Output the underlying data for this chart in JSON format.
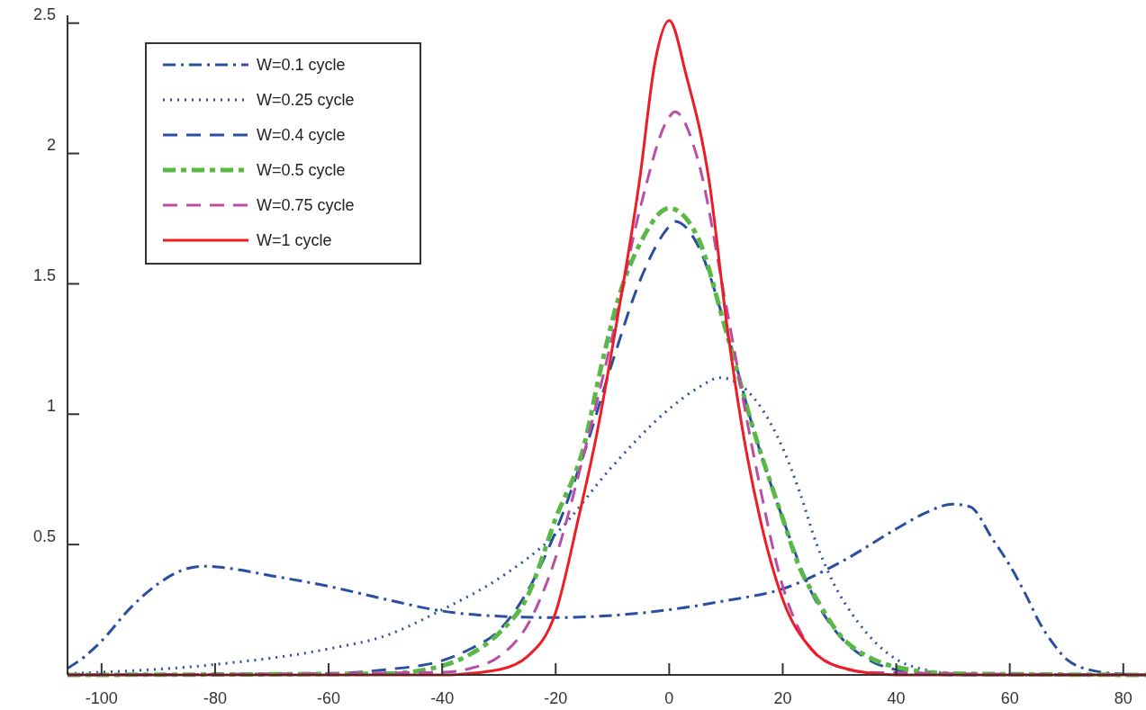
{
  "chart_data": {
    "type": "line",
    "xlim": [
      -106,
      84
    ],
    "ylim": [
      0,
      2.53
    ],
    "xticks": [
      -100,
      -80,
      -60,
      -40,
      -20,
      0,
      20,
      40,
      60,
      80
    ],
    "yticks": [
      0.5,
      1,
      1.5,
      2,
      2.5
    ],
    "grid": false,
    "legend": "top left",
    "series": [
      {
        "name": "W=0.1 cycle",
        "color": "#2a4ea0",
        "line_style": "dashdot",
        "x": [
          -106,
          -103,
          -100,
          -95,
          -90,
          -86,
          -82,
          -78,
          -70,
          -60,
          -50,
          -40,
          -30,
          -20,
          -10,
          0,
          10,
          20,
          30,
          40,
          45,
          50,
          53,
          57,
          60,
          63,
          65,
          68,
          70,
          75,
          80,
          84
        ],
        "values": [
          0.025,
          0.07,
          0.13,
          0.255,
          0.35,
          0.4,
          0.417,
          0.41,
          0.38,
          0.34,
          0.29,
          0.245,
          0.225,
          0.22,
          0.228,
          0.25,
          0.285,
          0.33,
          0.43,
          0.56,
          0.62,
          0.655,
          0.645,
          0.52,
          0.42,
          0.3,
          0.21,
          0.11,
          0.06,
          0.015,
          0.003,
          0
        ]
      },
      {
        "name": "W=0.25 cycle",
        "color": "#2a4ea0",
        "line_style": "dotted",
        "x": [
          -106,
          -80,
          -60,
          -50,
          -40,
          -30,
          -20,
          -10,
          0,
          5,
          9,
          12,
          15,
          18,
          20,
          23,
          26,
          29,
          33,
          40,
          45,
          50,
          60,
          84
        ],
        "values": [
          0.005,
          0.04,
          0.1,
          0.15,
          0.25,
          0.37,
          0.54,
          0.8,
          1.02,
          1.1,
          1.14,
          1.12,
          1.06,
          0.96,
          0.87,
          0.7,
          0.5,
          0.35,
          0.21,
          0.06,
          0.02,
          0.005,
          0,
          0
        ]
      },
      {
        "name": "W=0.4 cycle",
        "color": "#2a4ea0",
        "line_style": "dashed",
        "x": [
          -106,
          -60,
          -50,
          -40,
          -35,
          -30,
          -25,
          -20,
          -15,
          -10,
          -5,
          0,
          1,
          5,
          10,
          15,
          20,
          25,
          30,
          35,
          40,
          50,
          84
        ],
        "values": [
          0,
          0.005,
          0.02,
          0.055,
          0.1,
          0.17,
          0.32,
          0.55,
          0.85,
          1.2,
          1.52,
          1.72,
          1.74,
          1.65,
          1.33,
          0.93,
          0.6,
          0.32,
          0.15,
          0.06,
          0.02,
          0,
          0
        ]
      },
      {
        "name": "W=0.5 cycle",
        "color": "#5ab946",
        "line_style": "dashdot",
        "x": [
          -106,
          -50,
          -40,
          -35,
          -30,
          -25,
          -20,
          -15,
          -12,
          -9,
          -5,
          0,
          5,
          10,
          15,
          20,
          23,
          26,
          30,
          35,
          40,
          50,
          84
        ],
        "values": [
          0,
          0.005,
          0.035,
          0.08,
          0.16,
          0.3,
          0.6,
          0.88,
          1.18,
          1.44,
          1.66,
          1.79,
          1.68,
          1.32,
          0.93,
          0.6,
          0.41,
          0.29,
          0.155,
          0.07,
          0.03,
          0.005,
          0
        ]
      },
      {
        "name": "W=0.75 cycle",
        "color": "#b84fa5",
        "line_style": "dashed",
        "x": [
          -106,
          -40,
          -35,
          -30,
          -25,
          -20,
          -15,
          -10,
          -5,
          0,
          1,
          5,
          10,
          15,
          20,
          25,
          30,
          35,
          84
        ],
        "values": [
          0,
          0.01,
          0.025,
          0.07,
          0.19,
          0.45,
          0.85,
          1.3,
          1.8,
          2.14,
          2.16,
          1.98,
          1.42,
          0.83,
          0.34,
          0.1,
          0.03,
          0.01,
          0
        ]
      },
      {
        "name": "W=1 cycle",
        "color": "#ee1c25",
        "line_style": "solid",
        "x": [
          -106,
          -40,
          -30,
          -25,
          -20,
          -16,
          -12.7,
          -9.5,
          -5.2,
          -2.5,
          0,
          3,
          7,
          10.3,
          13,
          16,
          20,
          25,
          30,
          40,
          84
        ],
        "values": [
          0,
          0,
          0.02,
          0.07,
          0.24,
          0.6,
          0.93,
          1.32,
          1.9,
          2.35,
          2.51,
          2.3,
          1.9,
          1.32,
          0.93,
          0.6,
          0.29,
          0.1,
          0.03,
          0,
          0
        ]
      }
    ]
  }
}
